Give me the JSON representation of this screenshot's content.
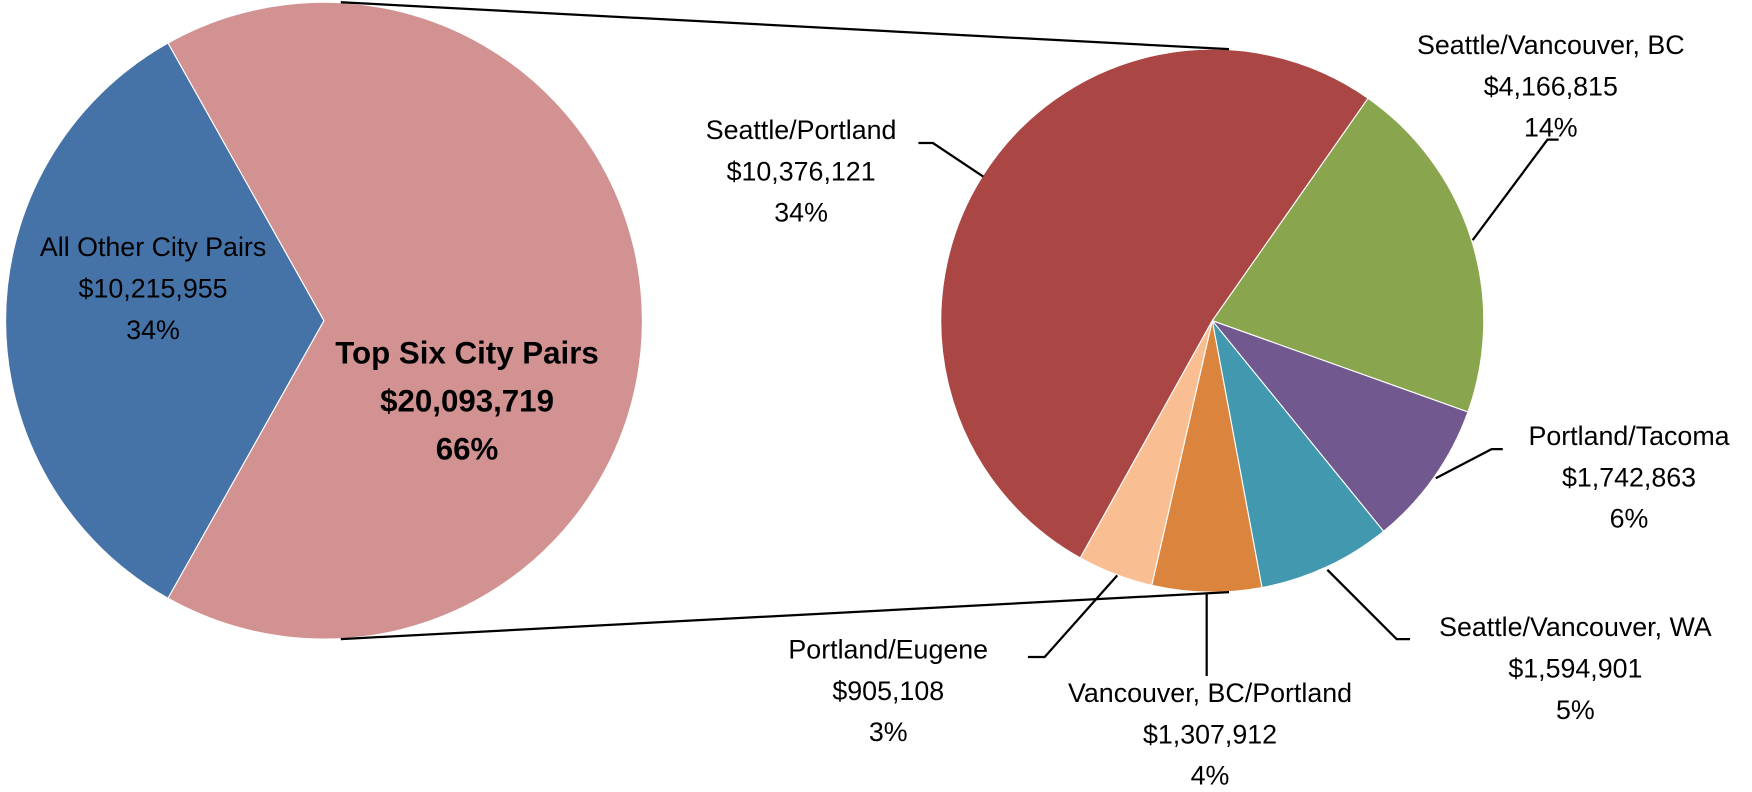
{
  "chart_data": [
    {
      "type": "pie",
      "categories": [
        "All Other City Pairs",
        "Top Six City Pairs"
      ],
      "values": [
        10215955,
        20093719
      ],
      "value_labels": [
        "$10,215,955",
        "$20,093,719"
      ],
      "percents": [
        34,
        66
      ],
      "percent_labels": [
        "34%",
        "66%"
      ],
      "colors": [
        "#4572a7",
        "#d39292"
      ]
    },
    {
      "type": "pie",
      "categories": [
        "Seattle/Vancouver, BC",
        "Portland/Tacoma",
        "Seattle/Vancouver, WA",
        "Vancouver, BC/Portland",
        "Portland/Eugene",
        "Seattle/Portland"
      ],
      "values": [
        4166815,
        1742863,
        1594901,
        1307912,
        905108,
        10376121
      ],
      "value_labels": [
        "$4,166,815",
        "$1,742,863",
        "$1,594,901",
        "$1,307,912",
        "$905,108",
        "$10,376,121"
      ],
      "percents": [
        14,
        6,
        5,
        4,
        3,
        34
      ],
      "percent_labels": [
        "14%",
        "6%",
        "5%",
        "4%",
        "3%",
        "34%"
      ],
      "colors": [
        "#89a54e",
        "#71588f",
        "#4198af",
        "#db843d",
        "#f9be91",
        "#aa4643"
      ]
    }
  ]
}
